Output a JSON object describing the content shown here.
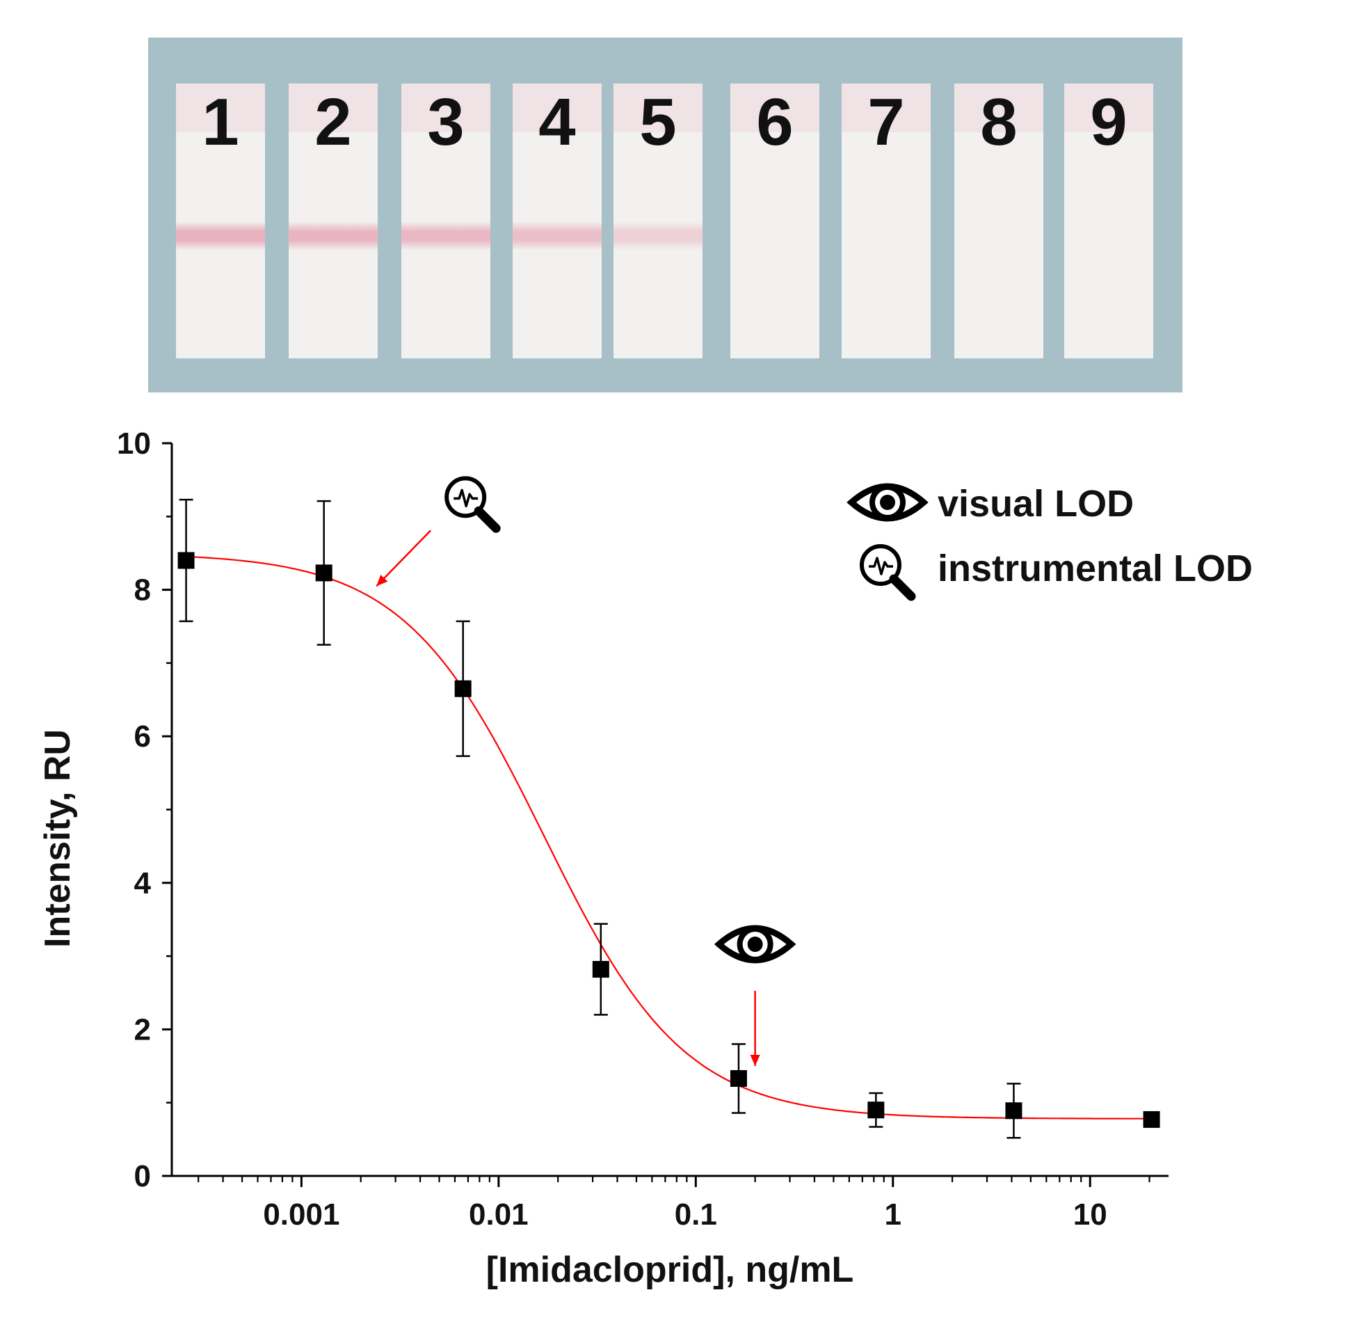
{
  "panel": {
    "background_color": "#a7bfc7",
    "strip_color": "#f3f1f0",
    "line_color": "#e3a9b8",
    "strips": [
      {
        "label": "1",
        "test_line_intensity": 0.9
      },
      {
        "label": "2",
        "test_line_intensity": 0.85
      },
      {
        "label": "3",
        "test_line_intensity": 0.8
      },
      {
        "label": "4",
        "test_line_intensity": 0.7
      },
      {
        "label": "5",
        "test_line_intensity": 0.45
      },
      {
        "label": "6",
        "test_line_intensity": 0
      },
      {
        "label": "7",
        "test_line_intensity": 0
      },
      {
        "label": "8",
        "test_line_intensity": 0
      },
      {
        "label": "9",
        "test_line_intensity": 0
      }
    ]
  },
  "chart_data": {
    "type": "scatter",
    "title": "",
    "xlabel": "[Imidacloprid], ng/mL",
    "ylabel": "Intensity, RU",
    "x_scale": "log",
    "xlim": [
      0.00022,
      25
    ],
    "ylim": [
      0,
      10
    ],
    "x_ticks": [
      {
        "value": 0.001,
        "label": "0.001"
      },
      {
        "value": 0.01,
        "label": "0.01"
      },
      {
        "value": 0.1,
        "label": "0.1"
      },
      {
        "value": 1,
        "label": "1"
      },
      {
        "value": 10,
        "label": "10"
      }
    ],
    "y_ticks": [
      {
        "value": 0,
        "label": "0"
      },
      {
        "value": 2,
        "label": "2"
      },
      {
        "value": 4,
        "label": "4"
      },
      {
        "value": 6,
        "label": "6"
      },
      {
        "value": 8,
        "label": "8"
      },
      {
        "value": 10,
        "label": "10"
      }
    ],
    "points": [
      {
        "x": 0.00026,
        "y": 8.4,
        "err": 0.83
      },
      {
        "x": 0.0013,
        "y": 8.23,
        "err": 0.98
      },
      {
        "x": 0.0066,
        "y": 6.65,
        "err": 0.92
      },
      {
        "x": 0.033,
        "y": 2.82,
        "err": 0.62
      },
      {
        "x": 0.165,
        "y": 1.33,
        "err": 0.47
      },
      {
        "x": 0.82,
        "y": 0.9,
        "err": 0.23
      },
      {
        "x": 4.1,
        "y": 0.89,
        "err": 0.37
      },
      {
        "x": 20.5,
        "y": 0.77,
        "err": 0
      }
    ],
    "fit": {
      "model": "4PL",
      "top": 8.5,
      "bottom": 0.78,
      "ic50": 0.017,
      "slope": 1.22
    },
    "marker_color": "#000000",
    "fit_color": "#ff0000",
    "annotations": [
      {
        "type": "instrumental LOD",
        "icon": "magnifier-signal-icon",
        "x": 0.0024,
        "y": 8.05
      },
      {
        "type": "visual LOD",
        "icon": "eye-icon",
        "x": 0.2,
        "y": 1.5
      }
    ],
    "legend": {
      "position": "top-right",
      "items": [
        {
          "icon": "eye-icon",
          "label": "visual LOD"
        },
        {
          "icon": "magnifier-signal-icon",
          "label": "instrumental LOD"
        }
      ]
    }
  }
}
